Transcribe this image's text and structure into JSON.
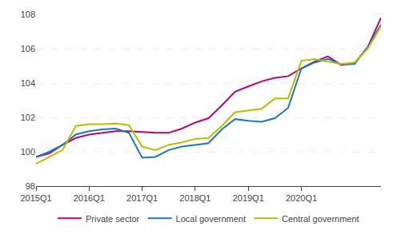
{
  "chart_data": {
    "type": "line",
    "categories": [
      "2015Q1",
      null,
      null,
      null,
      "2016Q1",
      null,
      null,
      null,
      "2017Q1",
      null,
      null,
      null,
      "2018Q1",
      null,
      null,
      null,
      "2019Q1",
      null,
      null,
      null,
      "2020Q1",
      null,
      null,
      null,
      null,
      null,
      null
    ],
    "series": [
      {
        "name": "Private sector",
        "color": "#c0007a",
        "values": [
          99.7,
          99.9,
          100.4,
          100.8,
          101.0,
          101.1,
          101.2,
          101.2,
          101.15,
          101.1,
          101.1,
          101.35,
          101.7,
          101.95,
          102.7,
          103.5,
          103.8,
          104.1,
          104.3,
          104.4,
          104.85,
          105.25,
          105.55,
          105.05,
          105.15,
          106.1,
          107.8
        ]
      },
      {
        "name": "Local government",
        "color": "#1a78be",
        "values": [
          99.7,
          100.0,
          100.4,
          101.0,
          101.2,
          101.3,
          101.35,
          101.1,
          99.65,
          99.7,
          100.1,
          100.3,
          100.4,
          100.5,
          101.3,
          101.9,
          101.8,
          101.75,
          101.95,
          102.55,
          104.85,
          105.2,
          105.4,
          105.1,
          105.1,
          106.1,
          107.4
        ]
      },
      {
        "name": "Central government",
        "color": "#b5be00",
        "values": [
          99.3,
          99.7,
          100.1,
          101.5,
          101.6,
          101.6,
          101.65,
          101.55,
          100.3,
          100.1,
          100.4,
          100.55,
          100.75,
          100.8,
          101.5,
          102.3,
          102.4,
          102.5,
          103.1,
          103.1,
          105.3,
          105.4,
          105.25,
          105.1,
          105.2,
          106.0,
          107.3
        ]
      }
    ],
    "ylim": [
      98,
      108
    ],
    "yticks": [
      98,
      100,
      102,
      104,
      106,
      108
    ],
    "grid": true,
    "legend": "bottom"
  }
}
